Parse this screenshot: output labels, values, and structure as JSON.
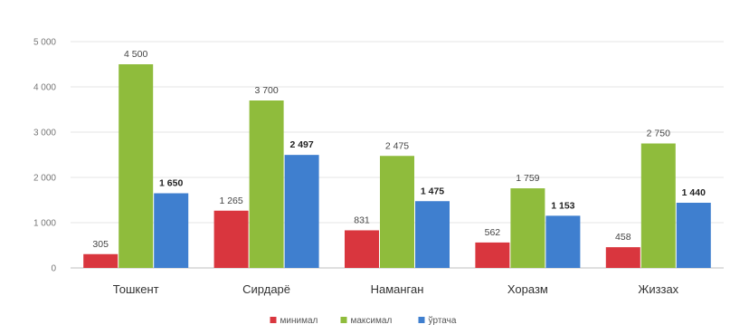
{
  "chart_data": {
    "type": "bar",
    "categories": [
      "Тошкент",
      "Сирдарё",
      "Наманган",
      "Хоразм",
      "Жиззах"
    ],
    "series": [
      {
        "name": "минимал",
        "color": "#d9363e",
        "values": [
          305,
          1265,
          831,
          562,
          458
        ],
        "labels": [
          "305",
          "1 265",
          "831",
          "562",
          "458"
        ],
        "bold_labels": false
      },
      {
        "name": "максимал",
        "color": "#8fbc3c",
        "values": [
          4500,
          3700,
          2475,
          1759,
          2750
        ],
        "labels": [
          "4 500",
          "3 700",
          "2 475",
          "1 759",
          "2 750"
        ],
        "bold_labels": false
      },
      {
        "name": "ўртача",
        "color": "#3f7fcf",
        "values": [
          1650,
          2497,
          1475,
          1153,
          1440
        ],
        "labels": [
          "1 650",
          "2 497",
          "1 475",
          "1 153",
          "1 440"
        ],
        "bold_labels": true
      }
    ],
    "yticks": [
      "0",
      "1 000",
      "2 000",
      "3 000",
      "4 000",
      "5 000"
    ],
    "ylim": [
      0,
      5000
    ],
    "legend_position": "bottom-center",
    "grid": true
  }
}
